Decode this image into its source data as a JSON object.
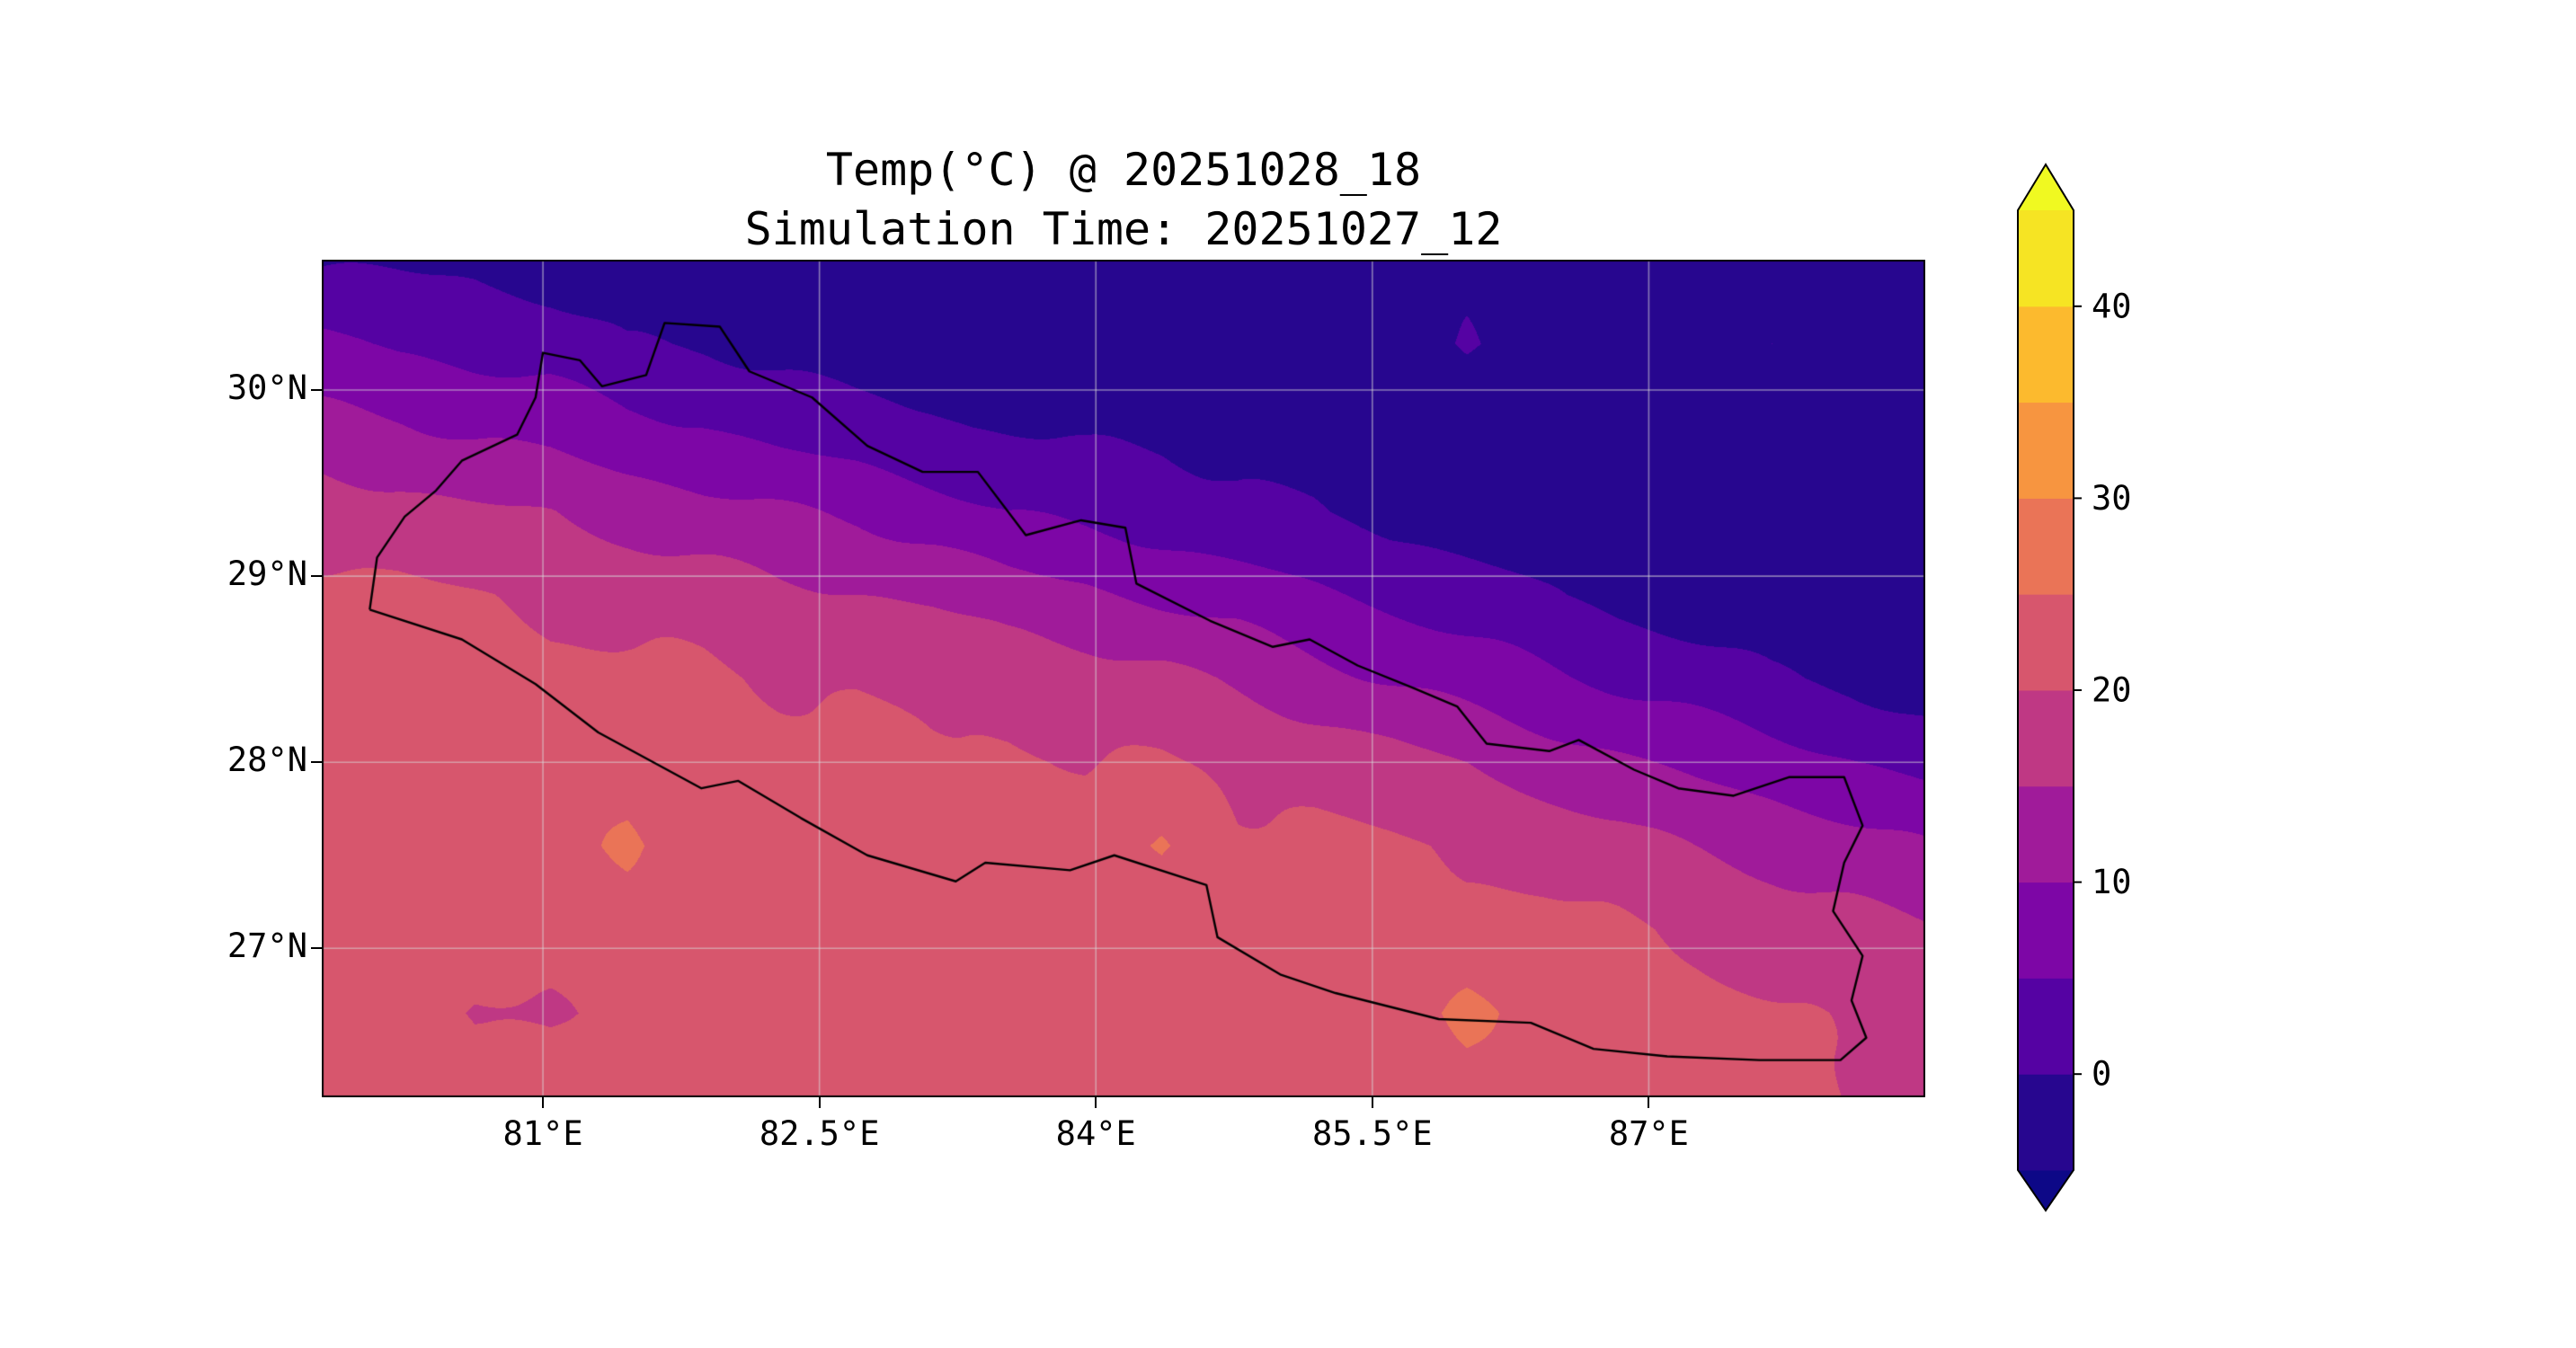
{
  "chart_data": {
    "type": "heatmap",
    "title": "Temp(°C) @ 20251028_18",
    "subtitle": "Simulation Time: 20251027_12",
    "variable": "Temp(°C)",
    "valid_time": "20251028_18",
    "simulation_time": "20251027_12",
    "colormap": "plasma",
    "region": "Nepal",
    "levels": [
      -5,
      0,
      5,
      10,
      15,
      20,
      25,
      30,
      35,
      40,
      45
    ],
    "band_colors": [
      "#27068f",
      "#5502a3",
      "#7d06a6",
      "#a01b9a",
      "#bf3884",
      "#d7566d",
      "#ea7457",
      "#f79540",
      "#fcba2e",
      "#f6e423"
    ],
    "under_color": "#0d0887",
    "over_color": "#f0f921",
    "colorbar_ticks": [
      0,
      10,
      20,
      30,
      40
    ],
    "grid_on": true,
    "extent": {
      "lon_min": 79.8,
      "lon_max": 88.5,
      "lat_min": 26.2,
      "lat_max": 30.7
    },
    "x_ticks": [
      {
        "label": "81°E",
        "lon": 81
      },
      {
        "label": "82.5°E",
        "lon": 82.5
      },
      {
        "label": "84°E",
        "lon": 84
      },
      {
        "label": "85.5°E",
        "lon": 85.5
      },
      {
        "label": "87°E",
        "lon": 87
      }
    ],
    "y_ticks": [
      {
        "label": "30°N",
        "lat": 30
      },
      {
        "label": "29°N",
        "lat": 29
      },
      {
        "label": "28°N",
        "lat": 28
      },
      {
        "label": "27°N",
        "lat": 27
      }
    ],
    "grid": {
      "nrows": 11,
      "ncols": 22,
      "units": "degC",
      "order": "north_to_south",
      "values": [
        [
          -1,
          -1,
          -1,
          -2,
          -3,
          -3,
          -3,
          -4,
          -4,
          -4,
          -4,
          -4,
          -4,
          -4,
          -4,
          -3,
          -4,
          -4,
          -4,
          -4,
          -4,
          -4
        ],
        [
          6,
          4,
          3,
          2,
          0,
          0,
          -1,
          -2,
          -2,
          -3,
          -3,
          -3,
          -4,
          -4,
          -4,
          1,
          -4,
          -4,
          -4,
          0,
          -4,
          -4
        ],
        [
          12,
          11,
          9,
          8,
          6,
          5,
          3,
          2,
          1,
          0,
          -1,
          -1,
          -2,
          -3,
          -4,
          -4,
          -4,
          -4,
          -4,
          -4,
          -4,
          -4
        ],
        [
          18,
          17,
          16,
          15,
          13,
          11,
          10,
          9,
          7,
          5,
          4,
          3,
          1,
          0,
          -2,
          -3,
          -4,
          -4,
          -4,
          -4,
          -4,
          -4
        ],
        [
          21,
          21,
          20,
          19,
          19,
          18,
          16,
          15,
          14,
          12,
          11,
          9,
          8,
          6,
          4,
          2,
          0,
          -2,
          -3,
          -4,
          -4,
          -4
        ],
        [
          22,
          22,
          22,
          21,
          21,
          21,
          20,
          20,
          19,
          18,
          17,
          16,
          14,
          12,
          10,
          8,
          6,
          4,
          2,
          0,
          -1,
          -3
        ],
        [
          23,
          23,
          22,
          22,
          22,
          22,
          22,
          22,
          21,
          21,
          20,
          20,
          19,
          18,
          17,
          15,
          13,
          11,
          9,
          7,
          5,
          3
        ],
        [
          23,
          23,
          23,
          22,
          26,
          22,
          22,
          22,
          22,
          22,
          22,
          26,
          21,
          21,
          20,
          19,
          18,
          17,
          15,
          14,
          12,
          10
        ],
        [
          23,
          23,
          22,
          23,
          23,
          22,
          23,
          23,
          22,
          23,
          23,
          22,
          22,
          23,
          22,
          21,
          21,
          20,
          19,
          18,
          17,
          16
        ],
        [
          23,
          23,
          19,
          19,
          23,
          23,
          24,
          23,
          23,
          23,
          24,
          23,
          23,
          22,
          23,
          27,
          22,
          21,
          21,
          20,
          19,
          18
        ],
        [
          23,
          24,
          23,
          24,
          24,
          23,
          24,
          24,
          23,
          24,
          23,
          24,
          23,
          23,
          24,
          23,
          22,
          22,
          21,
          21,
          20,
          19
        ]
      ]
    },
    "border_name": "Nepal outline",
    "border_polygon": [
      [
        80.06,
        28.82
      ],
      [
        80.1,
        29.1
      ],
      [
        80.25,
        29.32
      ],
      [
        80.42,
        29.46
      ],
      [
        80.56,
        29.62
      ],
      [
        80.86,
        29.76
      ],
      [
        80.96,
        29.96
      ],
      [
        81.0,
        30.2
      ],
      [
        81.2,
        30.16
      ],
      [
        81.32,
        30.02
      ],
      [
        81.56,
        30.08
      ],
      [
        81.66,
        30.36
      ],
      [
        81.96,
        30.34
      ],
      [
        82.12,
        30.1
      ],
      [
        82.46,
        29.96
      ],
      [
        82.76,
        29.7
      ],
      [
        83.06,
        29.56
      ],
      [
        83.36,
        29.56
      ],
      [
        83.62,
        29.22
      ],
      [
        83.92,
        29.3
      ],
      [
        84.16,
        29.26
      ],
      [
        84.22,
        28.96
      ],
      [
        84.62,
        28.76
      ],
      [
        84.96,
        28.62
      ],
      [
        85.16,
        28.66
      ],
      [
        85.42,
        28.52
      ],
      [
        85.72,
        28.4
      ],
      [
        85.96,
        28.3
      ],
      [
        86.12,
        28.1
      ],
      [
        86.46,
        28.06
      ],
      [
        86.62,
        28.12
      ],
      [
        86.92,
        27.96
      ],
      [
        87.16,
        27.86
      ],
      [
        87.46,
        27.82
      ],
      [
        87.76,
        27.92
      ],
      [
        88.06,
        27.92
      ],
      [
        88.16,
        27.66
      ],
      [
        88.06,
        27.46
      ],
      [
        88.0,
        27.2
      ],
      [
        88.16,
        26.96
      ],
      [
        88.1,
        26.72
      ],
      [
        88.18,
        26.52
      ],
      [
        88.04,
        26.4
      ],
      [
        87.6,
        26.4
      ],
      [
        87.1,
        26.42
      ],
      [
        86.7,
        26.46
      ],
      [
        86.36,
        26.6
      ],
      [
        85.86,
        26.62
      ],
      [
        85.3,
        26.76
      ],
      [
        85.0,
        26.86
      ],
      [
        84.66,
        27.06
      ],
      [
        84.6,
        27.34
      ],
      [
        84.1,
        27.5
      ],
      [
        83.86,
        27.42
      ],
      [
        83.4,
        27.46
      ],
      [
        83.24,
        27.36
      ],
      [
        82.76,
        27.5
      ],
      [
        82.4,
        27.7
      ],
      [
        82.06,
        27.9
      ],
      [
        81.86,
        27.86
      ],
      [
        81.3,
        28.16
      ],
      [
        80.96,
        28.42
      ],
      [
        80.56,
        28.66
      ],
      [
        80.06,
        28.82
      ]
    ],
    "grid_line_color": "#d8d8d8",
    "axis_color": "#000000"
  }
}
